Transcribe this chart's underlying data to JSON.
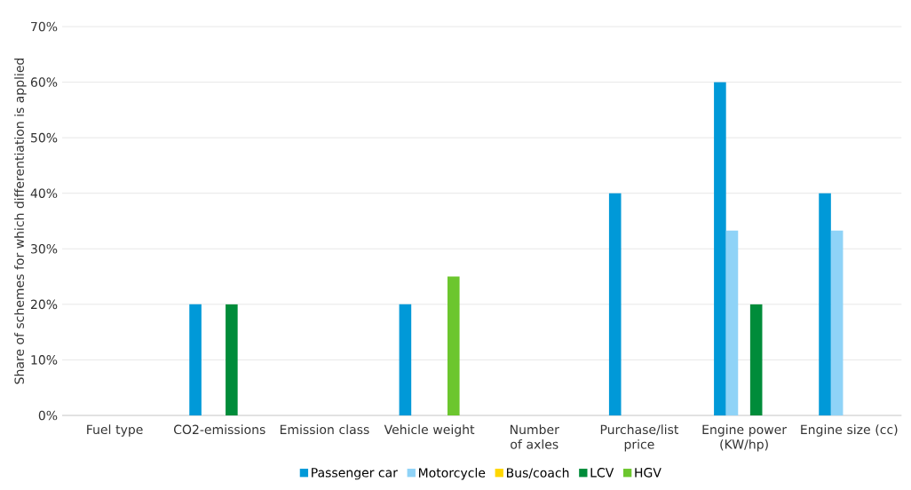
{
  "chart_data": {
    "type": "bar",
    "ylabel": "Share of schemes for which differentiation is applied",
    "categories": [
      "Fuel type",
      "CO2-emissions",
      "Emission class",
      "Vehicle weight",
      "Number of axles",
      "Purchase/list price",
      "Engine power (KW/hp)",
      "Engine size (cc)"
    ],
    "series": [
      {
        "name": "Passenger car",
        "color": "#0099d8",
        "values": [
          0,
          20,
          0,
          20,
          0,
          40,
          60,
          40
        ]
      },
      {
        "name": "Motorcycle",
        "color": "#8fd3f7",
        "values": [
          0,
          0,
          0,
          0,
          0,
          0,
          33.3,
          33.3
        ]
      },
      {
        "name": "Bus/coach",
        "color": "#ffd700",
        "values": [
          0,
          0,
          0,
          0,
          0,
          0,
          0,
          0
        ]
      },
      {
        "name": "LCV",
        "color": "#008c3a",
        "values": [
          0,
          20,
          0,
          0,
          0,
          0,
          20,
          0
        ]
      },
      {
        "name": "HGV",
        "color": "#6cc62e",
        "values": [
          0,
          0,
          0,
          25,
          0,
          0,
          0,
          0
        ]
      }
    ],
    "ylim": [
      0,
      70
    ],
    "yticks": [
      {
        "value": 0,
        "label": "0%"
      },
      {
        "value": 10,
        "label": "10%"
      },
      {
        "value": 20,
        "label": "20%"
      },
      {
        "value": 30,
        "label": "30%"
      },
      {
        "value": 40,
        "label": "40%"
      },
      {
        "value": 50,
        "label": "50%"
      },
      {
        "value": 60,
        "label": "60%"
      },
      {
        "value": 70,
        "label": "70%"
      }
    ],
    "grid": "y",
    "legend": "bottom"
  }
}
